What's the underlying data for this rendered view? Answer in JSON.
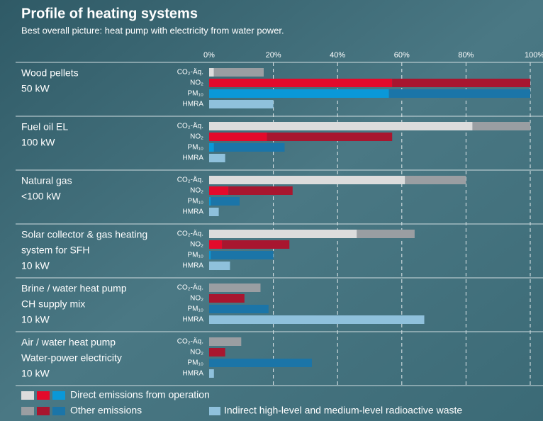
{
  "chart_data": {
    "type": "bar",
    "orientation": "horizontal",
    "stacked": true,
    "title": "Profile of heating systems",
    "subtitle": "Best overall picture: heat pump with electricity from water power.",
    "categories": [
      [
        "Wood pellets",
        "50 kW"
      ],
      [
        "Fuel oil EL",
        "100 kW"
      ],
      [
        "Natural gas",
        "<100 kW"
      ],
      [
        "Solar collector & gas heating",
        "system for SFH",
        "10 kW"
      ],
      [
        "Brine / water heat pump",
        "CH supply mix",
        "10 kW"
      ],
      [
        "Air / water heat pump",
        "Water-power electricity",
        "10 kW"
      ]
    ],
    "measures": [
      "CO₂-Äq.",
      "NO₂",
      "PM₁₀",
      "HMRA"
    ],
    "series": [
      {
        "name": "Direct emissions from operation",
        "colors": [
          "#dcdcdc",
          "#e30a2b",
          "#0a98d8"
        ],
        "values": [
          [
            1.5,
            57,
            56
          ],
          [
            82,
            18,
            1.5
          ],
          [
            61,
            6,
            0.5
          ],
          [
            46,
            4,
            0.5
          ],
          [
            0,
            0,
            0
          ],
          [
            0,
            0,
            0
          ]
        ]
      },
      {
        "name": "Other emissions",
        "colors": [
          "#9a9ea2",
          "#a8162f",
          "#1b75a8"
        ],
        "values": [
          [
            15.5,
            43,
            44
          ],
          [
            18,
            39,
            22
          ],
          [
            19,
            20,
            9
          ],
          [
            18,
            21,
            19.5
          ],
          [
            16,
            11,
            18.5
          ],
          [
            10,
            5,
            32
          ]
        ]
      },
      {
        "name": "Indirect high-level and medium-level radioactive waste",
        "color": "#8fc1dc",
        "values": [
          20,
          5,
          3,
          6.5,
          67,
          1.5
        ]
      }
    ],
    "xlim": [
      0,
      100
    ],
    "xticks": [
      {
        "value": 0,
        "label": "0%"
      },
      {
        "value": 20,
        "label": "20%"
      },
      {
        "value": 40,
        "label": "40%"
      },
      {
        "value": 60,
        "label": "60%"
      },
      {
        "value": 80,
        "label": "80%"
      },
      {
        "value": 100,
        "label": "100%"
      }
    ],
    "grid": true
  }
}
